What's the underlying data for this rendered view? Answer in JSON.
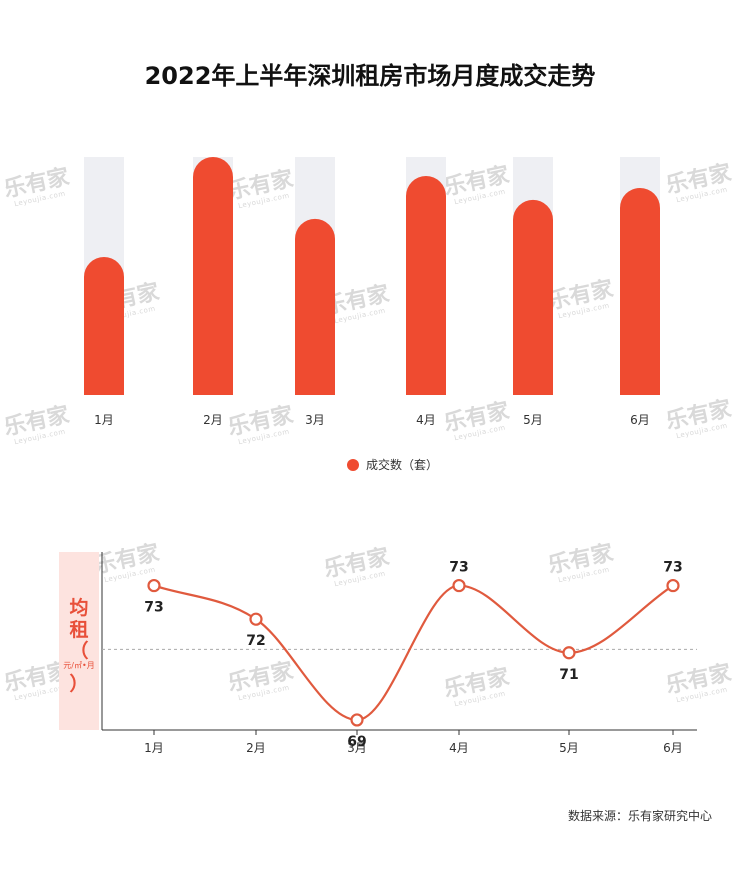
{
  "title": "2022年上半年深圳租房市场月度成交走势",
  "watermark": {
    "cn": "乐有家",
    "en": "Leyoujia.com"
  },
  "source_label": "数据来源：乐有家研究中心",
  "colors": {
    "accent": "#ef4b30",
    "track": "#eeeff3",
    "line": "#e05a3e",
    "ylabel_bg": "#fde3df"
  },
  "chart_data": [
    {
      "type": "bar",
      "categories": [
        "1月",
        "2月",
        "3月",
        "4月",
        "5月",
        "6月"
      ],
      "series": [
        {
          "name": "成交数（套）",
          "values": [
            58,
            100,
            74,
            92,
            82,
            87
          ]
        }
      ],
      "ylim": [
        0,
        100
      ],
      "legend": "bottom-center",
      "grid": false
    },
    {
      "type": "line",
      "categories": [
        "1月",
        "2月",
        "3月",
        "4月",
        "5月",
        "6月"
      ],
      "ylabel": {
        "main": [
          "均",
          "租",
          "（"
        ],
        "unit": "元/㎡•月",
        "close": "）"
      },
      "series": [
        {
          "values": [
            73,
            72,
            69,
            73,
            71,
            73
          ],
          "labels": [
            "73",
            "72",
            "69",
            "73",
            "71",
            "73"
          ]
        }
      ],
      "reference_line": 71.1,
      "ylim": [
        68.7,
        74.0
      ],
      "smooth": true,
      "grid": false
    }
  ]
}
